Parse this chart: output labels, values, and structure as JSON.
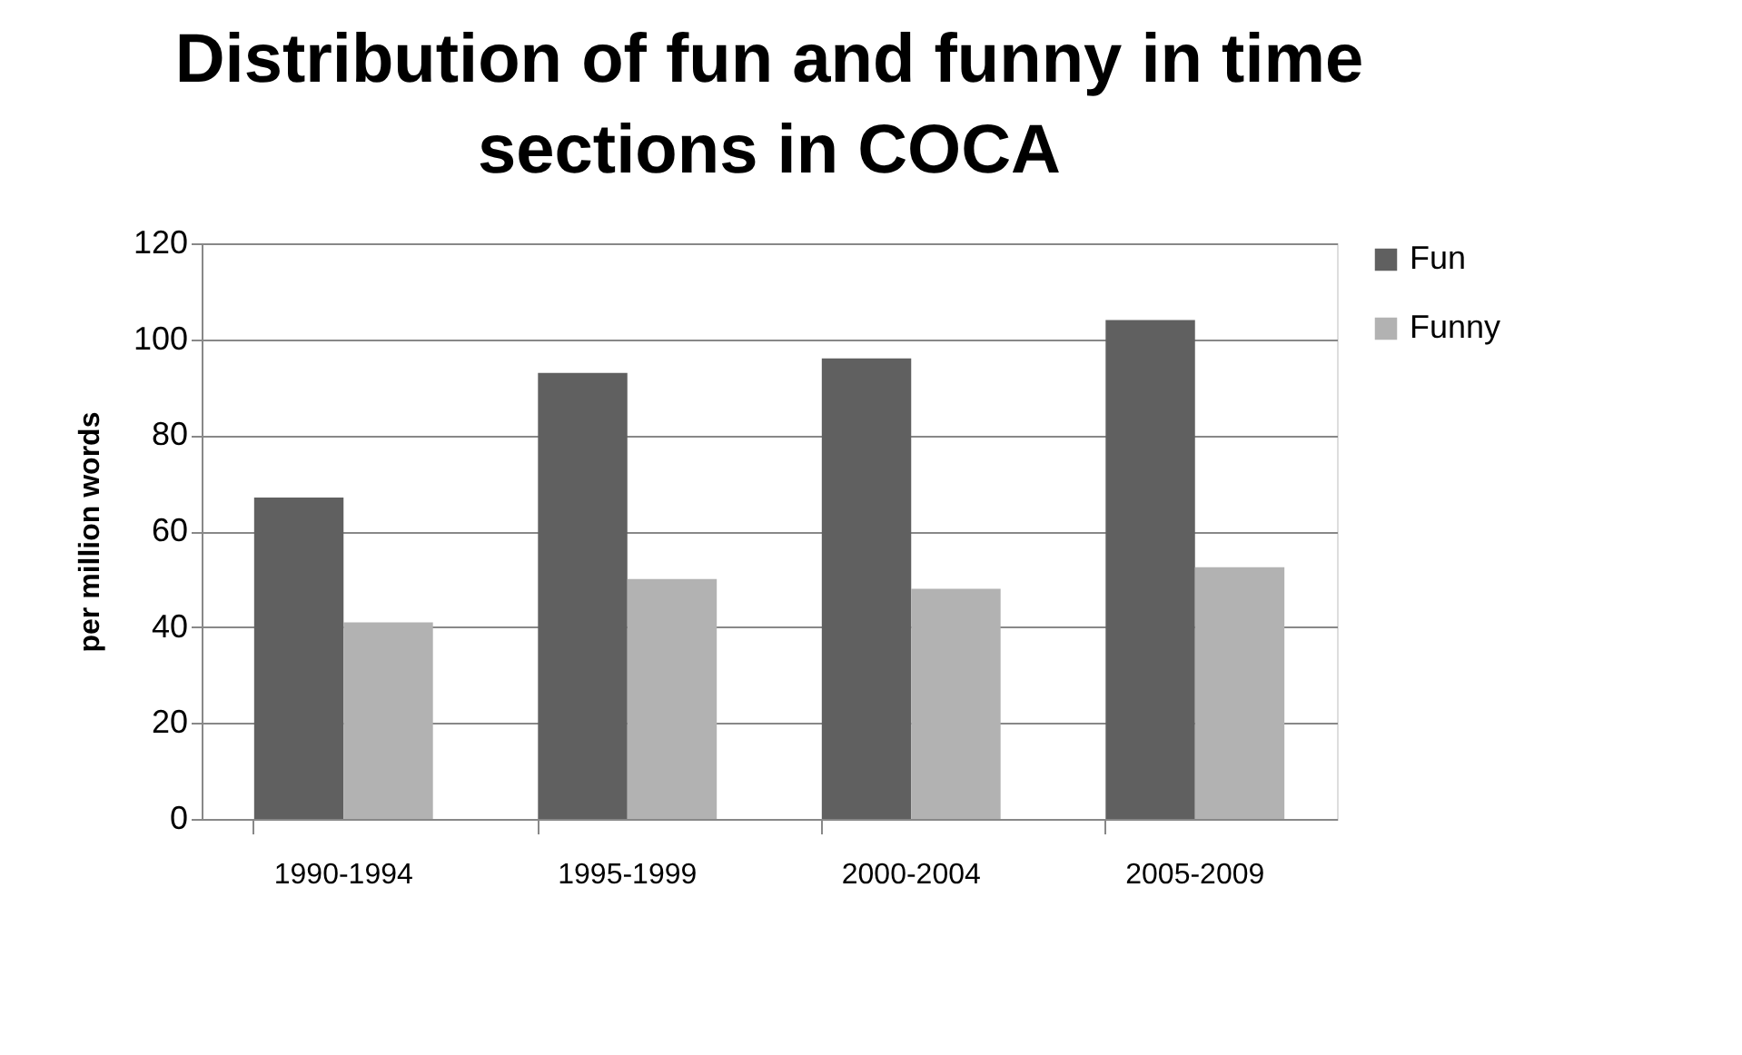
{
  "chart_data": {
    "type": "bar",
    "title": "Distribution of fun and funny in time sections in COCA",
    "ylabel": "per million words",
    "categories": [
      "1990-1994",
      "1995-1999",
      "2000-2004",
      "2005-2009"
    ],
    "series": [
      {
        "name": "Fun",
        "color": "#606060",
        "values": [
          67,
          93,
          96,
          104
        ]
      },
      {
        "name": "Funny",
        "color": "#b2b2b2",
        "values": [
          41,
          50,
          48,
          52.5
        ]
      }
    ],
    "ylim": [
      0,
      120
    ],
    "yticks": [
      0,
      20,
      40,
      60,
      80,
      100,
      120
    ],
    "grid": "y",
    "legend": "right"
  }
}
